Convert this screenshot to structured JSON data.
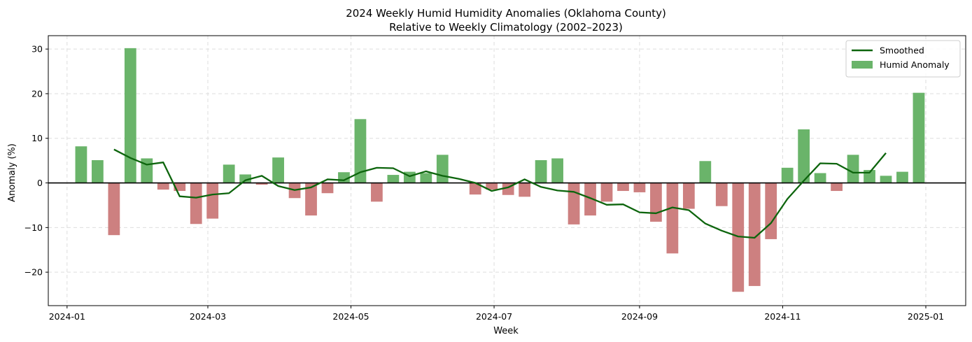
{
  "chart_data": {
    "type": "bar",
    "title_lines": [
      "2024 Weekly Humid Humidity Anomalies (Oklahoma County)",
      "Relative to Weekly Climatology (2002–2023)"
    ],
    "xlabel": "Week",
    "ylabel": "Anomaly (%)",
    "x_type": "date",
    "xlim": [
      "2023-12-24",
      "2025-01-18"
    ],
    "ylim": [
      -27.5,
      33
    ],
    "x_ticks": [
      {
        "date": "2024-01-01",
        "label": "2024-01"
      },
      {
        "date": "2024-03-01",
        "label": "2024-03"
      },
      {
        "date": "2024-05-01",
        "label": "2024-05"
      },
      {
        "date": "2024-07-01",
        "label": "2024-07"
      },
      {
        "date": "2024-09-01",
        "label": "2024-09"
      },
      {
        "date": "2024-11-01",
        "label": "2024-11"
      },
      {
        "date": "2025-01-01",
        "label": "2025-01"
      }
    ],
    "y_ticks": [
      {
        "value": -20,
        "label": "−20"
      },
      {
        "value": -10,
        "label": "−10"
      },
      {
        "value": 0,
        "label": "0"
      },
      {
        "value": 10,
        "label": "10"
      },
      {
        "value": 20,
        "label": "20"
      },
      {
        "value": 30,
        "label": "30"
      }
    ],
    "grid": true,
    "legend_position": "top-right",
    "colors": {
      "positive": "#6ab46a",
      "negative": "#cd8080",
      "smoothed": "#0d650d",
      "zero_line": "#000000",
      "grid": "#dddddd"
    },
    "series": [
      {
        "name": "Humid Anomaly",
        "type": "bar",
        "x": [
          "2024-01-07",
          "2024-01-14",
          "2024-01-21",
          "2024-01-28",
          "2024-02-04",
          "2024-02-11",
          "2024-02-18",
          "2024-02-25",
          "2024-03-03",
          "2024-03-10",
          "2024-03-17",
          "2024-03-24",
          "2024-03-31",
          "2024-04-07",
          "2024-04-14",
          "2024-04-21",
          "2024-04-28",
          "2024-05-05",
          "2024-05-12",
          "2024-05-19",
          "2024-05-26",
          "2024-06-02",
          "2024-06-09",
          "2024-06-16",
          "2024-06-23",
          "2024-06-30",
          "2024-07-07",
          "2024-07-14",
          "2024-07-21",
          "2024-07-28",
          "2024-08-04",
          "2024-08-11",
          "2024-08-18",
          "2024-08-25",
          "2024-09-01",
          "2024-09-08",
          "2024-09-15",
          "2024-09-22",
          "2024-09-29",
          "2024-10-06",
          "2024-10-13",
          "2024-10-20",
          "2024-10-27",
          "2024-11-03",
          "2024-11-10",
          "2024-11-17",
          "2024-11-24",
          "2024-12-01",
          "2024-12-08",
          "2024-12-15",
          "2024-12-22",
          "2024-12-29"
        ],
        "values": [
          8.2,
          5.1,
          -11.7,
          30.2,
          5.5,
          -1.5,
          -1.8,
          -9.2,
          -8.0,
          4.1,
          1.9,
          -0.4,
          5.7,
          -3.4,
          -7.3,
          -2.3,
          2.4,
          14.3,
          -4.2,
          1.8,
          2.5,
          2.2,
          6.3,
          0.0,
          -2.6,
          -1.5,
          -2.7,
          -3.1,
          5.1,
          5.5,
          -9.3,
          -7.3,
          -4.2,
          -1.8,
          -2.1,
          -8.7,
          -15.8,
          -5.8,
          4.9,
          -5.2,
          -24.4,
          -23.1,
          -12.6,
          3.4,
          12.0,
          2.2,
          -1.8,
          6.3,
          2.9,
          1.6,
          2.5,
          20.2
        ]
      },
      {
        "name": "Smoothed",
        "type": "line",
        "x": [
          "2024-01-21",
          "2024-01-28",
          "2024-02-04",
          "2024-02-11",
          "2024-02-18",
          "2024-02-25",
          "2024-03-03",
          "2024-03-10",
          "2024-03-17",
          "2024-03-24",
          "2024-03-31",
          "2024-04-07",
          "2024-04-14",
          "2024-04-21",
          "2024-04-28",
          "2024-05-05",
          "2024-05-12",
          "2024-05-19",
          "2024-05-26",
          "2024-06-02",
          "2024-06-09",
          "2024-06-16",
          "2024-06-23",
          "2024-06-30",
          "2024-07-07",
          "2024-07-14",
          "2024-07-21",
          "2024-07-28",
          "2024-08-04",
          "2024-08-11",
          "2024-08-18",
          "2024-08-25",
          "2024-09-01",
          "2024-09-08",
          "2024-09-15",
          "2024-09-22",
          "2024-09-29",
          "2024-10-06",
          "2024-10-13",
          "2024-10-20",
          "2024-10-27",
          "2024-11-03",
          "2024-11-10",
          "2024-11-17",
          "2024-11-24",
          "2024-12-01",
          "2024-12-08",
          "2024-12-15"
        ],
        "values": [
          7.5,
          5.6,
          4.1,
          4.6,
          -3.0,
          -3.3,
          -2.6,
          -2.3,
          0.6,
          1.6,
          -0.7,
          -1.6,
          -1.0,
          0.8,
          0.6,
          2.4,
          3.4,
          3.3,
          1.5,
          2.6,
          1.6,
          0.9,
          0.0,
          -1.8,
          -1.0,
          0.8,
          -0.9,
          -1.7,
          -2.0,
          -3.4,
          -4.9,
          -4.8,
          -6.6,
          -6.8,
          -5.5,
          -6.1,
          -9.1,
          -10.7,
          -12.0,
          -12.3,
          -9.0,
          -3.6,
          0.5,
          4.4,
          4.3,
          2.3,
          2.3,
          6.7
        ]
      }
    ]
  }
}
